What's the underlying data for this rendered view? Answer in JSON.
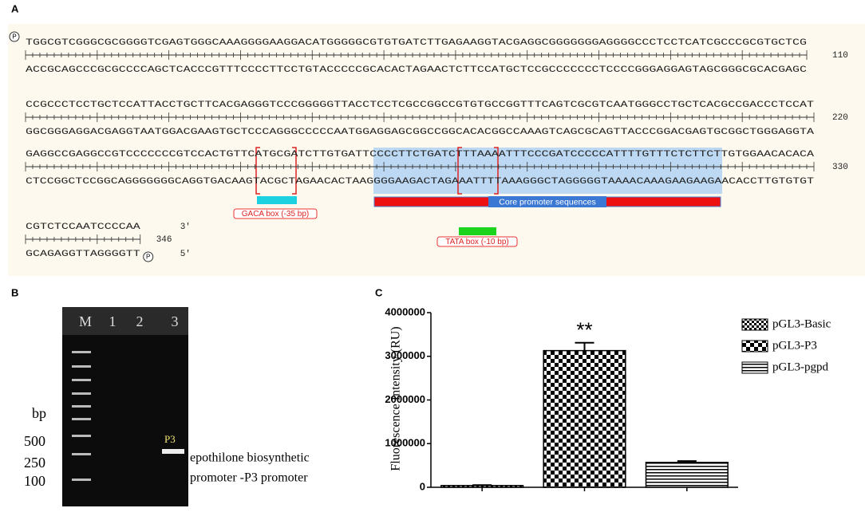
{
  "panels": {
    "A": {
      "label": "A",
      "phosphate": "P",
      "rows": [
        {
          "top": "TGGCGTCGGGCGCGGGGTCGAGTGGGCAAAGGGGAAGGACATGGGGGCGTGTGATCTTGAGAAGGTACGAGGCGGGGGGGAGGGGCCCTCCTCATCGCCCGCGTGCTCG",
          "bottom": "ACCGCAGCCCGCGCCCCAGCTCACCCGTTTCCCCTTCCTGTACCCCCGCACACTAGAACTCTTCCATGCTCCGCCCCCCCTCCCCGGGAGGAGTAGCGGGCGCACGAGC",
          "number": 110
        },
        {
          "top": "CCGCCCTCCTGCTCCATTACCTGCTTCACGAGGGTCCCGGGGGTTACCTCCTCGCCGGCCGTGTGCCGGTTTCAGTCGCGTCAATGGGCCTGCTCACGCCGACCCTCCAT",
          "bottom": "GGCGGGAGGACGAGGTAATGGACGAAGTGCTCCCAGGGCCCCCAATGGAGGAGCGGCCGGCACACGGCCAAAGTCAGCGCAGTTACCCGGACGAGTGCGGCTGGGAGGTA",
          "number": 220
        },
        {
          "top": "GAGGCCGAGGCCGTCCCCCCCGTCCACTGTTCATGCGATCTTGTGATTCCCCTTCTGATCTTTAAAATTTCCCGATCCCCCATTTTGTTTCTCTTCTTGTGGAACACACA",
          "bottom": "CTCCGGCTCCGGCAGGGGGGGCAGGTGACAAGTACGCTAGAACACTAAGGGGAAGACTAGAAATTTTAAAGGGCTAGGGGGTAAAACAAAGAAGAAGAACACCTTGTGTGT",
          "number": 330
        },
        {
          "top": "CGTCTCCAATCCCCAA",
          "bottom": "GCAGAGGTTAGGGGTT",
          "number": 346,
          "top_end": "3'",
          "bottom_end": "5'"
        }
      ],
      "gaca_box": "GACA box (-35 bp)",
      "core_promoter": "Core promoter sequences",
      "tata_box": "TATA box (-10 bp)"
    },
    "B": {
      "label": "B",
      "lanes": [
        "M",
        "1",
        "2",
        "3"
      ],
      "unit": "bp",
      "sizes": [
        "500",
        "250",
        "100"
      ],
      "band_label": "P3",
      "caption": [
        "epothilone biosynthetic",
        "promoter -P3 promoter"
      ]
    }
  },
  "chart_data": {
    "type": "bar",
    "panel_label": "C",
    "ylabel": "Fluorescence Intensity (RU)",
    "categories": [
      null,
      null,
      null
    ],
    "names": [
      "pGL3-Basic",
      "pGL3-P3",
      "pGL3-pgpd"
    ],
    "patterns": [
      "checker-small",
      "checker-large",
      "stripes"
    ],
    "values": [
      40000,
      3130000,
      570000
    ],
    "errors": [
      10000,
      180000,
      30000
    ],
    "annotations": [
      null,
      "**",
      null
    ],
    "ylim": [
      0,
      4000000
    ],
    "yticks": [
      0,
      1000000,
      2000000,
      3000000,
      4000000
    ]
  }
}
